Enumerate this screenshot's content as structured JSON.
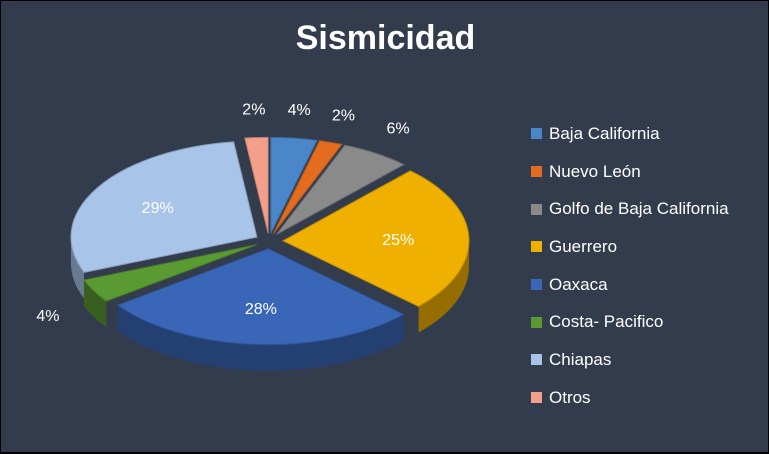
{
  "chart_data": {
    "type": "pie",
    "title": "Sismicidad",
    "legend_position": "right",
    "series": [
      {
        "name": "Baja California",
        "value": 4,
        "label": "4%",
        "color": "#4a86c8"
      },
      {
        "name": "Nuevo León",
        "value": 2,
        "label": "2%",
        "color": "#e46c1e"
      },
      {
        "name": "Golfo de Baja California",
        "value": 6,
        "label": "6%",
        "color": "#8a8a8a"
      },
      {
        "name": "Guerrero",
        "value": 25,
        "label": "25%",
        "color": "#f0b000"
      },
      {
        "name": "Oaxaca",
        "value": 28,
        "label": "28%",
        "color": "#3a66b8"
      },
      {
        "name": "Costa- Pacifico",
        "value": 4,
        "label": "4%",
        "color": "#5a9a32"
      },
      {
        "name": "Chiapas",
        "value": 29,
        "label": "29%",
        "color": "#a8c4e8"
      },
      {
        "name": "Otros",
        "value": 2,
        "label": "2%",
        "color": "#f2a08a"
      }
    ]
  }
}
